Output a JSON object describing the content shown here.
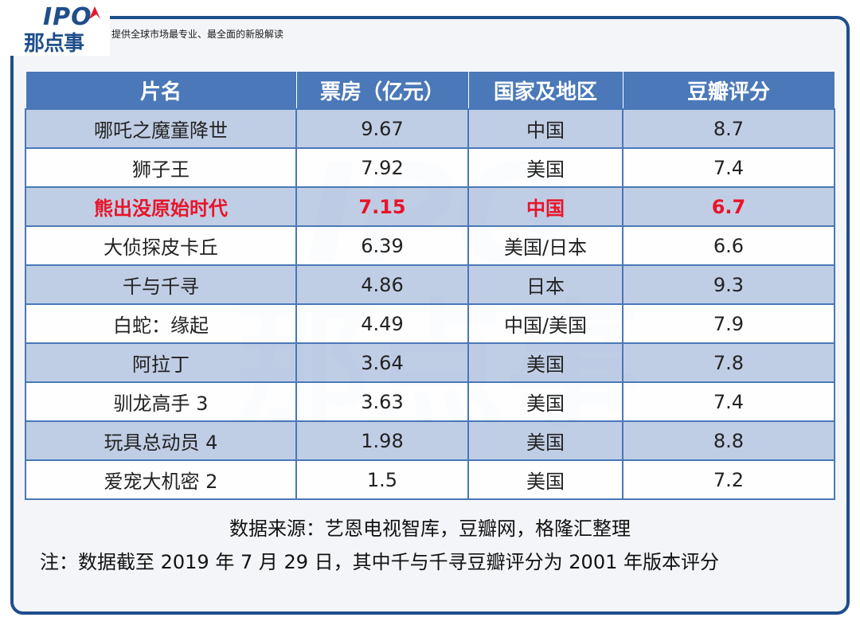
{
  "brand": {
    "logo_top": "IPO",
    "logo_bottom": "那点事",
    "tagline": "提供全球市场最专业、最全面的新股解读"
  },
  "colors": {
    "frame": "#1f4e8c",
    "header_bg": "#4a78b8",
    "row_stripe": "#b6c7e2",
    "highlight": "#e8142a"
  },
  "table": {
    "headers": [
      "片名",
      "票房（亿元）",
      "国家及地区",
      "豆瓣评分"
    ],
    "rows": [
      {
        "title": "哪吒之魔童降世",
        "box_office": "9.67",
        "region": "中国",
        "rating": "8.7"
      },
      {
        "title": "狮子王",
        "box_office": "7.92",
        "region": "美国",
        "rating": "7.4"
      },
      {
        "title": "熊出没原始时代",
        "box_office": "7.15",
        "region": "中国",
        "rating": "6.7"
      },
      {
        "title": "大侦探皮卡丘",
        "box_office": "6.39",
        "region": "美国/日本",
        "rating": "6.6"
      },
      {
        "title": "千与千寻",
        "box_office": "4.86",
        "region": "日本",
        "rating": "9.3"
      },
      {
        "title": "白蛇：缘起",
        "box_office": "4.49",
        "region": "中国/美国",
        "rating": "7.9"
      },
      {
        "title": "阿拉丁",
        "box_office": "3.64",
        "region": "美国",
        "rating": "7.8"
      },
      {
        "title": "驯龙高手 3",
        "box_office": "3.63",
        "region": "美国",
        "rating": "7.4"
      },
      {
        "title": "玩具总动员 4",
        "box_office": "1.98",
        "region": "美国",
        "rating": "8.8"
      },
      {
        "title": "爱宠大机密 2",
        "box_office": "1.5",
        "region": "美国",
        "rating": "7.2"
      }
    ]
  },
  "footer": {
    "source": "数据来源：艺恩电视智库，豆瓣网，格隆汇整理",
    "note": "注：数据截至 2019 年 7 月 29 日，其中千与千寻豆瓣评分为 2001 年版本评分"
  }
}
